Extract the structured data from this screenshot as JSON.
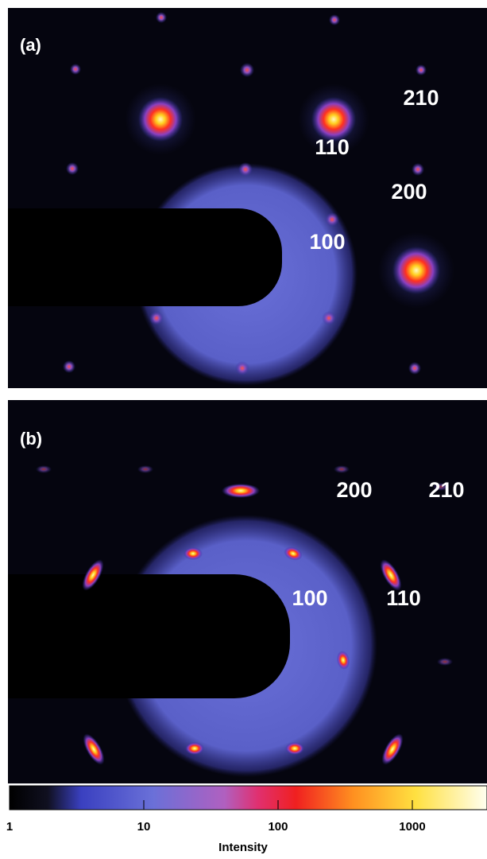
{
  "panels": [
    {
      "label": "(a)",
      "indices": [
        "210",
        "110",
        "200",
        "100"
      ]
    },
    {
      "label": "(b)",
      "indices": [
        "200",
        "210",
        "100",
        "110"
      ]
    }
  ],
  "colorbar": {
    "label": "Intensity",
    "log": true,
    "lim": [
      1,
      3600
    ],
    "ticks": [
      1,
      10,
      100,
      1000
    ]
  }
}
